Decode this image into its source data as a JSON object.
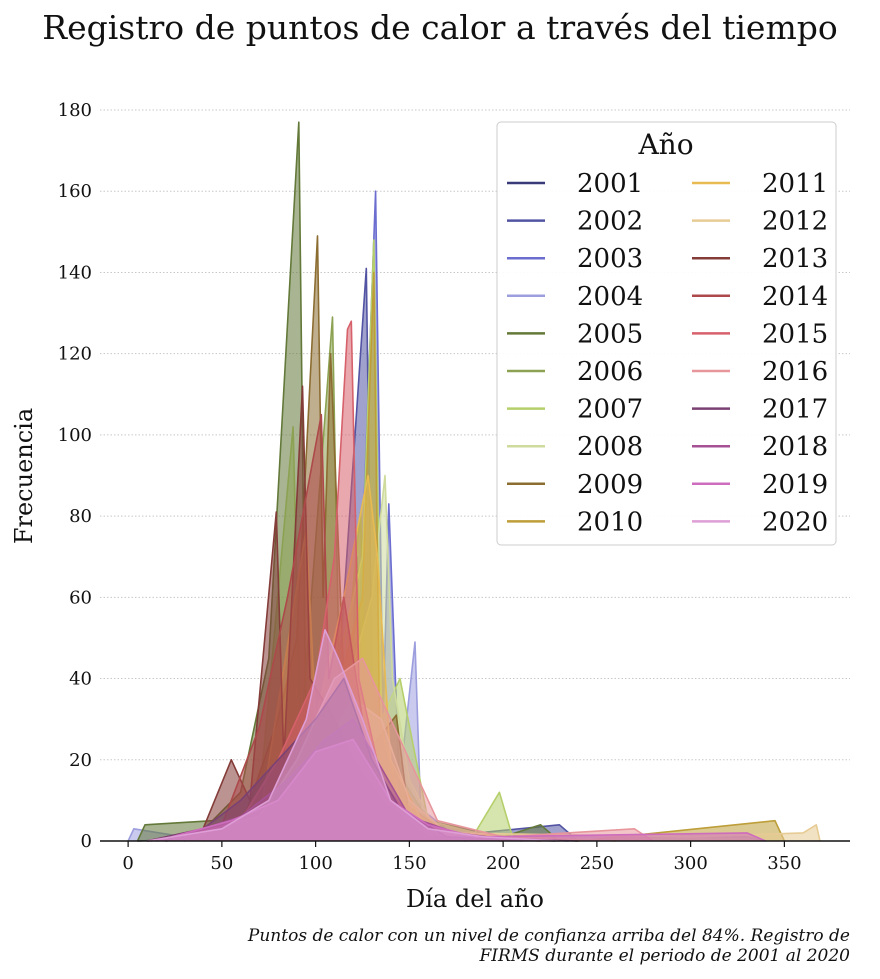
{
  "title": "Registro de puntos de calor a través del tiempo",
  "caption_line1": "Puntos de calor con un nivel de confianza arriba del 84%. Registro de",
  "caption_line2": "FIRMS durante el periodo de 2001 al 2020",
  "chart_data": {
    "type": "line",
    "title": "Registro de puntos de calor a través del tiempo",
    "xlabel": "Día del año",
    "ylabel": "Frecuencia",
    "xlim": [
      -15,
      385
    ],
    "ylim": [
      0,
      180
    ],
    "xticks": [
      0,
      50,
      100,
      150,
      200,
      250,
      300,
      350
    ],
    "yticks": [
      0,
      20,
      40,
      60,
      80,
      100,
      120,
      140,
      160,
      180
    ],
    "grid": "horizontal dotted",
    "legend": {
      "title": "Año",
      "placement": "top-right",
      "columns": 2
    },
    "series": [
      {
        "name": "2001",
        "color": "#393b79",
        "points": [
          [
            5,
            0
          ],
          [
            60,
            1
          ],
          [
            85,
            6
          ],
          [
            100,
            15
          ],
          [
            118,
            30
          ],
          [
            122,
            70
          ],
          [
            126,
            25
          ],
          [
            135,
            8
          ],
          [
            160,
            1
          ],
          [
            228,
            0
          ]
        ]
      },
      {
        "name": "2002",
        "color": "#5254a3",
        "points": [
          [
            10,
            0
          ],
          [
            70,
            1
          ],
          [
            95,
            10
          ],
          [
            110,
            25
          ],
          [
            127,
            141
          ],
          [
            130,
            40
          ],
          [
            140,
            10
          ],
          [
            165,
            1
          ],
          [
            230,
            4
          ],
          [
            240,
            0
          ]
        ]
      },
      {
        "name": "2003",
        "color": "#6b6ecf",
        "points": [
          [
            20,
            0
          ],
          [
            75,
            2
          ],
          [
            100,
            15
          ],
          [
            118,
            30
          ],
          [
            124,
            60
          ],
          [
            132,
            160
          ],
          [
            136,
            30
          ],
          [
            139,
            83
          ],
          [
            145,
            10
          ],
          [
            170,
            1
          ],
          [
            235,
            0
          ]
        ]
      },
      {
        "name": "2004",
        "color": "#9c9ede",
        "points": [
          [
            0,
            0
          ],
          [
            3,
            3
          ],
          [
            30,
            1
          ],
          [
            80,
            2
          ],
          [
            105,
            15
          ],
          [
            130,
            20
          ],
          [
            145,
            15
          ],
          [
            153,
            49
          ],
          [
            156,
            8
          ],
          [
            175,
            1
          ],
          [
            330,
            1
          ],
          [
            340,
            0
          ]
        ]
      },
      {
        "name": "2005",
        "color": "#637939",
        "points": [
          [
            5,
            0
          ],
          [
            9,
            4
          ],
          [
            45,
            5
          ],
          [
            60,
            12
          ],
          [
            75,
            45
          ],
          [
            91,
            177
          ],
          [
            95,
            20
          ],
          [
            105,
            30
          ],
          [
            118,
            10
          ],
          [
            140,
            20
          ],
          [
            160,
            5
          ],
          [
            200,
            1
          ],
          [
            220,
            4
          ],
          [
            230,
            0
          ]
        ]
      },
      {
        "name": "2006",
        "color": "#8ca252",
        "points": [
          [
            15,
            0
          ],
          [
            50,
            2
          ],
          [
            70,
            10
          ],
          [
            88,
            102
          ],
          [
            92,
            25
          ],
          [
            109,
            129
          ],
          [
            113,
            30
          ],
          [
            124,
            81
          ],
          [
            127,
            20
          ],
          [
            135,
            10
          ],
          [
            160,
            2
          ],
          [
            180,
            0
          ]
        ]
      },
      {
        "name": "2007",
        "color": "#b5cf6b",
        "points": [
          [
            40,
            0
          ],
          [
            70,
            3
          ],
          [
            95,
            15
          ],
          [
            115,
            50
          ],
          [
            125,
            70
          ],
          [
            131,
            148
          ],
          [
            135,
            30
          ],
          [
            145,
            40
          ],
          [
            160,
            5
          ],
          [
            185,
            2
          ],
          [
            198,
            12
          ],
          [
            205,
            1
          ],
          [
            230,
            0
          ]
        ]
      },
      {
        "name": "2008",
        "color": "#cedb9c",
        "points": [
          [
            50,
            0
          ],
          [
            85,
            5
          ],
          [
            105,
            25
          ],
          [
            118,
            40
          ],
          [
            130,
            60
          ],
          [
            137,
            90
          ],
          [
            141,
            40
          ],
          [
            150,
            15
          ],
          [
            165,
            2
          ],
          [
            200,
            0
          ]
        ]
      },
      {
        "name": "2009",
        "color": "#8c6d31",
        "points": [
          [
            20,
            0
          ],
          [
            60,
            3
          ],
          [
            80,
            30
          ],
          [
            90,
            50
          ],
          [
            101,
            149
          ],
          [
            104,
            60
          ],
          [
            108,
            120
          ],
          [
            115,
            40
          ],
          [
            125,
            20
          ],
          [
            143,
            31
          ],
          [
            150,
            5
          ],
          [
            170,
            0
          ]
        ]
      },
      {
        "name": "2010",
        "color": "#bd9e39",
        "points": [
          [
            30,
            0
          ],
          [
            65,
            4
          ],
          [
            90,
            20
          ],
          [
            110,
            35
          ],
          [
            125,
            60
          ],
          [
            131,
            140
          ],
          [
            134,
            30
          ],
          [
            145,
            10
          ],
          [
            170,
            2
          ],
          [
            240,
            0
          ],
          [
            345,
            5
          ],
          [
            350,
            0
          ]
        ]
      },
      {
        "name": "2011",
        "color": "#e7ba52",
        "points": [
          [
            25,
            0
          ],
          [
            70,
            5
          ],
          [
            95,
            77
          ],
          [
            100,
            30
          ],
          [
            115,
            60
          ],
          [
            128,
            90
          ],
          [
            133,
            70
          ],
          [
            140,
            20
          ],
          [
            160,
            2
          ],
          [
            260,
            0
          ]
        ]
      },
      {
        "name": "2012",
        "color": "#e7cb94",
        "points": [
          [
            40,
            0
          ],
          [
            80,
            4
          ],
          [
            100,
            20
          ],
          [
            120,
            35
          ],
          [
            135,
            30
          ],
          [
            150,
            10
          ],
          [
            170,
            2
          ],
          [
            300,
            1
          ],
          [
            360,
            2
          ],
          [
            367,
            4
          ],
          [
            369,
            0
          ]
        ]
      },
      {
        "name": "2013",
        "color": "#843c39",
        "points": [
          [
            10,
            0
          ],
          [
            40,
            3
          ],
          [
            55,
            20
          ],
          [
            65,
            10
          ],
          [
            79,
            81
          ],
          [
            83,
            20
          ],
          [
            93,
            112
          ],
          [
            97,
            40
          ],
          [
            110,
            30
          ],
          [
            120,
            20
          ],
          [
            135,
            10
          ],
          [
            160,
            1
          ],
          [
            200,
            0
          ]
        ]
      },
      {
        "name": "2014",
        "color": "#ad494a",
        "points": [
          [
            20,
            0
          ],
          [
            50,
            4
          ],
          [
            70,
            28
          ],
          [
            85,
            60
          ],
          [
            103,
            105
          ],
          [
            107,
            40
          ],
          [
            115,
            60
          ],
          [
            125,
            30
          ],
          [
            140,
            10
          ],
          [
            165,
            1
          ],
          [
            220,
            0
          ]
        ]
      },
      {
        "name": "2015",
        "color": "#d6616b",
        "points": [
          [
            30,
            0
          ],
          [
            60,
            5
          ],
          [
            80,
            20
          ],
          [
            100,
            40
          ],
          [
            110,
            70
          ],
          [
            117,
            126
          ],
          [
            119,
            128
          ],
          [
            123,
            40
          ],
          [
            135,
            15
          ],
          [
            155,
            3
          ],
          [
            180,
            0
          ]
        ]
      },
      {
        "name": "2016",
        "color": "#e7969c",
        "points": [
          [
            20,
            0
          ],
          [
            70,
            6
          ],
          [
            90,
            20
          ],
          [
            110,
            40
          ],
          [
            125,
            45
          ],
          [
            140,
            30
          ],
          [
            150,
            20
          ],
          [
            165,
            5
          ],
          [
            200,
            1
          ],
          [
            270,
            3
          ],
          [
            280,
            0
          ]
        ]
      },
      {
        "name": "2017",
        "color": "#7b4173",
        "points": [
          [
            10,
            0
          ],
          [
            40,
            3
          ],
          [
            60,
            10
          ],
          [
            80,
            20
          ],
          [
            100,
            30
          ],
          [
            115,
            40
          ],
          [
            130,
            20
          ],
          [
            145,
            8
          ],
          [
            170,
            1
          ],
          [
            240,
            0
          ]
        ]
      },
      {
        "name": "2018",
        "color": "#a55194",
        "points": [
          [
            20,
            0
          ],
          [
            60,
            6
          ],
          [
            85,
            15
          ],
          [
            105,
            25
          ],
          [
            120,
            30
          ],
          [
            135,
            18
          ],
          [
            150,
            6
          ],
          [
            175,
            2
          ],
          [
            210,
            0
          ]
        ]
      },
      {
        "name": "2019",
        "color": "#ce6dbd",
        "points": [
          [
            15,
            0
          ],
          [
            55,
            5
          ],
          [
            80,
            10
          ],
          [
            100,
            22
          ],
          [
            120,
            25
          ],
          [
            140,
            10
          ],
          [
            160,
            4
          ],
          [
            185,
            1
          ],
          [
            330,
            2
          ],
          [
            340,
            0
          ]
        ]
      },
      {
        "name": "2020",
        "color": "#de9ed6",
        "points": [
          [
            10,
            0
          ],
          [
            50,
            3
          ],
          [
            75,
            10
          ],
          [
            95,
            30
          ],
          [
            105,
            52
          ],
          [
            112,
            45
          ],
          [
            125,
            30
          ],
          [
            140,
            10
          ],
          [
            160,
            3
          ],
          [
            190,
            1
          ],
          [
            230,
            0
          ]
        ]
      }
    ]
  }
}
